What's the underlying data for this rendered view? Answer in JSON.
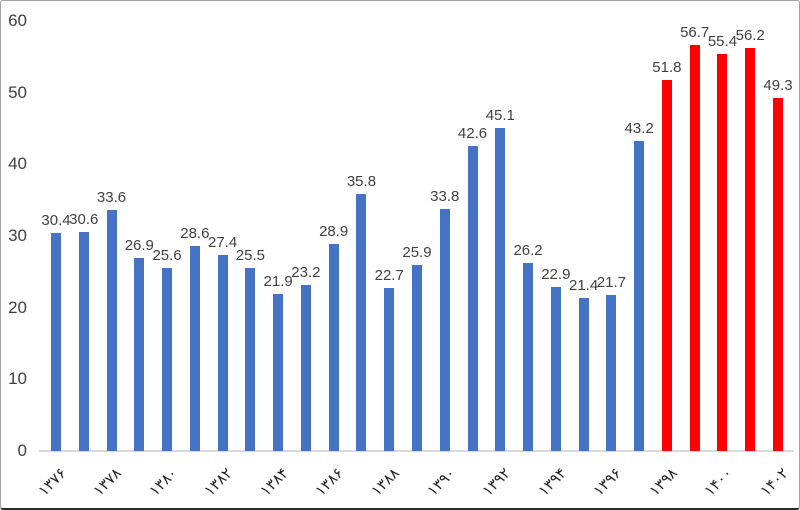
{
  "chart_data": {
    "type": "bar",
    "title": "",
    "ylim": [
      0,
      60
    ],
    "yticks": [
      "0",
      "10",
      "20",
      "30",
      "40",
      "50",
      "60"
    ],
    "grid": false,
    "legend_position": "none",
    "x_tick_rotation_deg": 45,
    "colors": {
      "default_bar": "#4472C4",
      "highlight_bar": "#FF0000",
      "axis_line": "#D9D9D9",
      "y_tick_text": "#404040",
      "data_label_text": "#404040",
      "x_tick_text": "#262626"
    },
    "highlight_start_index": 22,
    "values": [
      30.4,
      30.6,
      33.6,
      26.9,
      25.6,
      28.6,
      27.4,
      25.5,
      21.9,
      23.2,
      28.9,
      35.8,
      22.7,
      25.9,
      33.8,
      42.6,
      45.1,
      26.2,
      22.9,
      21.4,
      21.7,
      43.2,
      51.8,
      56.7,
      55.4,
      56.2,
      49.3
    ],
    "data_labels": [
      "30.4",
      "30.6",
      "33.6",
      "26.9",
      "25.6",
      "28.6",
      "27.4",
      "25.5",
      "21.9",
      "23.2",
      "28.9",
      "35.8",
      "22.7",
      "25.9",
      "33.8",
      "42.6",
      "45.1",
      "26.2",
      "22.9",
      "21.4",
      "21.7",
      "43.2",
      "51.8",
      "56.7",
      "55.4",
      "56.2",
      "49.3"
    ],
    "x_ticks": [
      {
        "label": "۱۳۷۶",
        "bar_index": 0
      },
      {
        "label": "۱۳۷۸",
        "bar_index": 2
      },
      {
        "label": "۱۳۸۰",
        "bar_index": 4
      },
      {
        "label": "۱۳۸۲",
        "bar_index": 6
      },
      {
        "label": "۱۳۸۴",
        "bar_index": 8
      },
      {
        "label": "۱۳۸۶",
        "bar_index": 10
      },
      {
        "label": "۱۳۸۸",
        "bar_index": 12
      },
      {
        "label": "۱۳۹۰",
        "bar_index": 14
      },
      {
        "label": "۱۳۹۲",
        "bar_index": 16
      },
      {
        "label": "۱۳۹۴",
        "bar_index": 18
      },
      {
        "label": "۱۳۹۶",
        "bar_index": 20
      },
      {
        "label": "۱۳۹۸",
        "bar_index": 22
      },
      {
        "label": "۱۴۰۰",
        "bar_index": 24
      },
      {
        "label": "۱۴۰۲",
        "bar_index": 26
      }
    ]
  }
}
